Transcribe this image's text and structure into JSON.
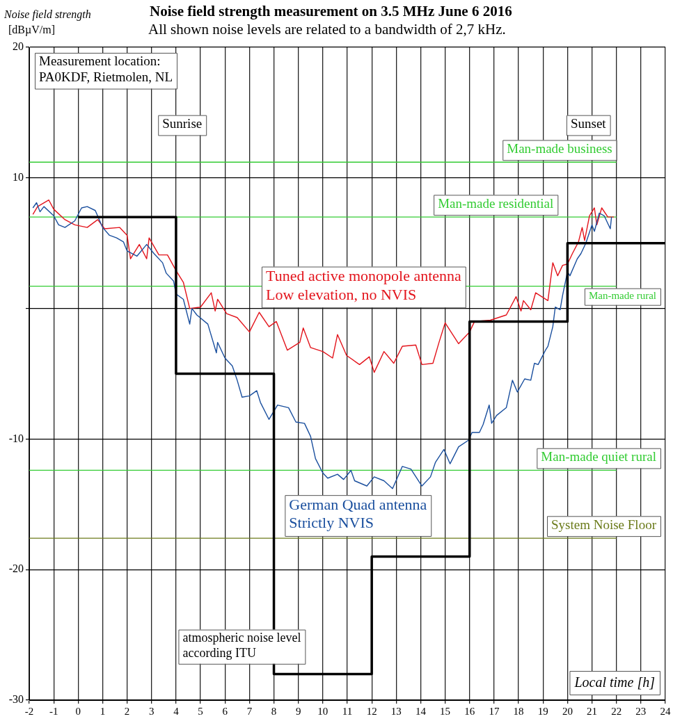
{
  "chart_data": {
    "type": "line",
    "title": "Noise field strength measurement on 3.5 MHz June 6 2016",
    "subtitle": "All shown noise levels are related to a bandwidth of 2,7 kHz.",
    "xlabel": "Local time [h]",
    "ylabel": "Noise field strength\n[dBµV/m]",
    "xlim": [
      -2,
      24
    ],
    "xticks": [
      -2,
      -1,
      0,
      1,
      2,
      3,
      4,
      5,
      6,
      7,
      8,
      9,
      10,
      11,
      12,
      13,
      14,
      15,
      16,
      17,
      18,
      19,
      20,
      21,
      22,
      23,
      24
    ],
    "ylim": [
      -30,
      20
    ],
    "yticks": [
      -30,
      -20,
      -10,
      {
        "value": 0,
        "label": null
      },
      10,
      20
    ],
    "grid": true,
    "legend": false,
    "marker": "none",
    "line_style": "solid",
    "series": [
      {
        "name": "Tuned active monopole antenna\nLow elevation, no NVIS",
        "color": "#e3141c",
        "x": [
          -1.85,
          -1.66,
          -1.2,
          -1.0,
          -0.54,
          -0.14,
          0.37,
          0.8,
          1.08,
          1.7,
          2.0,
          2.14,
          2.5,
          2.8,
          2.9,
          3.3,
          3.65,
          4.0,
          4.3,
          4.56,
          5.0,
          5.44,
          5.6,
          5.7,
          6.07,
          6.5,
          7.0,
          7.4,
          7.8,
          8.1,
          8.55,
          9.06,
          9.2,
          9.5,
          10.0,
          10.4,
          10.6,
          10.97,
          11.5,
          11.9,
          12.1,
          12.5,
          12.9,
          13.25,
          13.8,
          14.05,
          14.5,
          14.75,
          15.0,
          15.55,
          16.0,
          16.2,
          16.85,
          17.5,
          17.9,
          18.1,
          18.2,
          18.5,
          18.7,
          19.2,
          19.4,
          19.6,
          19.8,
          20.0,
          20.2,
          20.45,
          20.6,
          20.7,
          20.9,
          21.1,
          21.2,
          21.4,
          21.65,
          21.9
        ],
        "values": [
          7.2,
          7.8,
          8.3,
          7.6,
          6.8,
          6.4,
          6.2,
          6.8,
          6.1,
          6.2,
          5.6,
          3.8,
          4.9,
          3.8,
          5.4,
          4.1,
          4.1,
          2.9,
          2.0,
          0.0,
          0.1,
          1.2,
          -0.2,
          0.7,
          -0.4,
          -0.7,
          -1.8,
          -0.3,
          -1.4,
          -1.0,
          -3.2,
          -2.6,
          -1.5,
          -3.0,
          -3.3,
          -3.8,
          -2.0,
          -3.6,
          -4.3,
          -3.7,
          -4.9,
          -3.3,
          -4.2,
          -2.9,
          -2.8,
          -4.3,
          -4.2,
          -2.6,
          -1.1,
          -2.7,
          -1.8,
          -1.0,
          -0.9,
          -0.5,
          0.9,
          -0.2,
          0.6,
          -0.1,
          1.2,
          0.6,
          3.5,
          2.5,
          3.3,
          3.4,
          4.2,
          5.1,
          6.2,
          5.2,
          7.1,
          7.7,
          6.4,
          7.7,
          7.0,
          7.0
        ]
      },
      {
        "name": "German Quad antenna\nStrictly NVIS",
        "color": "#1a4f9e",
        "x": [
          -1.85,
          -1.7,
          -1.56,
          -1.4,
          -1.0,
          -0.8,
          -0.54,
          -0.14,
          0.14,
          0.37,
          0.7,
          1.0,
          1.28,
          1.57,
          1.85,
          2.0,
          2.4,
          2.8,
          3.1,
          3.45,
          3.6,
          3.9,
          4.0,
          4.3,
          4.56,
          4.65,
          4.85,
          5.3,
          5.65,
          5.7,
          6.0,
          6.3,
          6.5,
          6.7,
          7.0,
          7.3,
          7.45,
          7.8,
          8.15,
          8.6,
          8.9,
          9.25,
          9.5,
          9.7,
          10.0,
          10.2,
          10.6,
          10.85,
          11.15,
          11.3,
          11.8,
          12.1,
          12.5,
          12.85,
          13.25,
          13.6,
          14.05,
          14.4,
          14.6,
          14.95,
          15.2,
          15.55,
          15.95,
          16.1,
          16.4,
          16.55,
          16.8,
          16.9,
          17.1,
          17.5,
          17.75,
          17.95,
          18.25,
          18.5,
          18.65,
          18.8,
          19.1,
          19.2,
          19.4,
          19.5,
          19.7,
          19.8,
          20.0,
          20.1,
          20.4,
          20.55,
          20.75,
          21.0,
          21.1,
          21.3,
          21.5,
          21.75,
          21.8
        ],
        "values": [
          7.7,
          8.1,
          7.4,
          7.8,
          7.1,
          6.4,
          6.2,
          6.7,
          7.7,
          7.8,
          7.5,
          6.2,
          5.6,
          5.4,
          5.1,
          4.4,
          4.0,
          4.9,
          4.2,
          3.5,
          2.7,
          2.1,
          1.1,
          0.7,
          -1.2,
          0.0,
          -0.5,
          -1.2,
          -3.4,
          -2.6,
          -3.8,
          -4.4,
          -5.5,
          -6.8,
          -6.7,
          -6.3,
          -7.2,
          -8.5,
          -7.4,
          -7.6,
          -8.7,
          -8.8,
          -9.8,
          -11.5,
          -12.6,
          -13.0,
          -12.7,
          -13.1,
          -12.4,
          -13.2,
          -13.6,
          -12.9,
          -13.2,
          -13.8,
          -12.1,
          -12.3,
          -13.6,
          -12.9,
          -11.8,
          -10.8,
          -11.9,
          -10.6,
          -10.1,
          -9.5,
          -9.5,
          -8.9,
          -7.4,
          -8.8,
          -8.2,
          -7.6,
          -5.5,
          -6.4,
          -5.4,
          -5.5,
          -4.2,
          -4.3,
          -3.2,
          -2.9,
          -1.4,
          0.1,
          -0.1,
          1.0,
          2.8,
          2.5,
          3.8,
          4.2,
          5.0,
          6.4,
          5.9,
          7.3,
          7.1,
          6.1,
          7.0
        ]
      },
      {
        "name": "atmospheric noise level\naccording ITU",
        "color": "#000000",
        "x": [
          0,
          4,
          4,
          8,
          8,
          12,
          12,
          16,
          16,
          20,
          20,
          24
        ],
        "values": [
          7,
          7,
          -5,
          -5,
          -28,
          -28,
          -19,
          -19,
          -1,
          -1,
          5,
          5
        ]
      }
    ],
    "ref_lines": [
      {
        "axis": "y",
        "value": 11.2,
        "label": "Man-made business",
        "color": "#33cc33"
      },
      {
        "axis": "y",
        "value": 7,
        "label": "Man-made residential",
        "color": "#33cc33"
      },
      {
        "axis": "y",
        "value": 1.7,
        "label": "Man-made rural",
        "color": "#33cc33"
      },
      {
        "axis": "y",
        "value": -12.4,
        "label": "Man-made quiet rural",
        "color": "#33cc33"
      },
      {
        "axis": "y",
        "value": -17.6,
        "label": "System Noise Floor",
        "color": "#6b7b1a"
      }
    ],
    "annotations": [
      "Measurement location:\nPA0KDF, Rietmolen, NL",
      "Sunrise",
      "Sunset"
    ]
  }
}
